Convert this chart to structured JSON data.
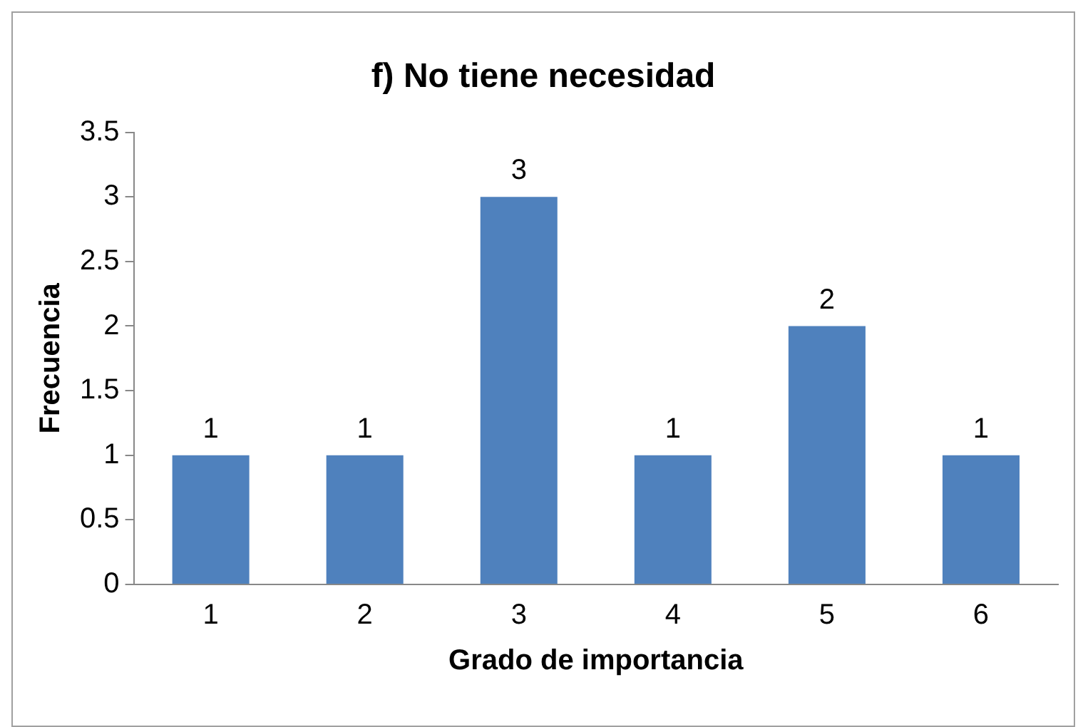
{
  "chart_data": {
    "type": "bar",
    "title": "f) No tiene necesidad",
    "xlabel": "Grado de importancia",
    "ylabel": "Frecuencia",
    "categories": [
      "1",
      "2",
      "3",
      "4",
      "5",
      "6"
    ],
    "values": [
      1,
      1,
      3,
      1,
      2,
      1
    ],
    "color": "#4f81bd",
    "ylim": [
      0,
      3.5
    ],
    "yticks": [
      0,
      0.5,
      1,
      1.5,
      2,
      2.5,
      3,
      3.5
    ],
    "grid": false,
    "legend": false,
    "data_labels": true
  }
}
